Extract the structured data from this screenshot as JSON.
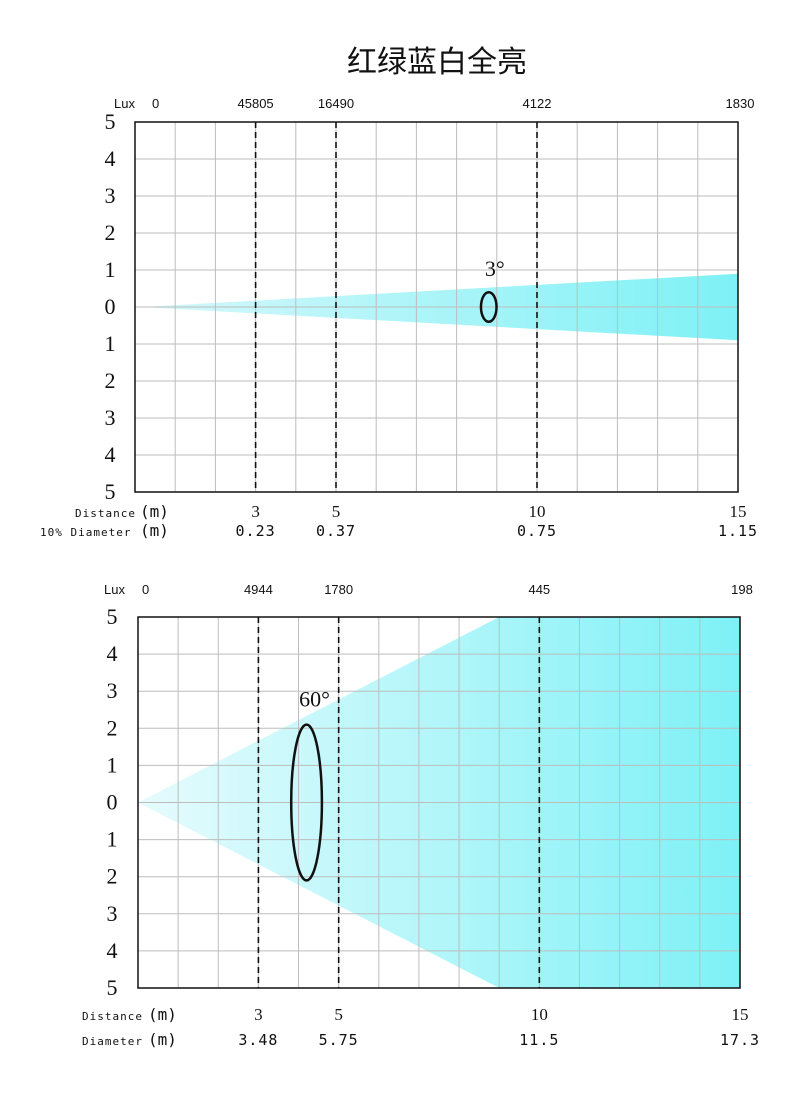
{
  "title": "红绿蓝白全亮",
  "chart_data": [
    {
      "type": "area",
      "subtitle": "beam spread diagram",
      "beam_angle_label": "3°",
      "lux_label": "Lux",
      "lux_values": [
        "0",
        "45805",
        "16490",
        "4122",
        "1830"
      ],
      "lux_positions_m": [
        0,
        3,
        5,
        10,
        15
      ],
      "x_max_m": 15,
      "y_range": [
        -5,
        5
      ],
      "y_tick_labels": [
        "5",
        "4",
        "3",
        "2",
        "1",
        "0",
        "1",
        "2",
        "3",
        "4",
        "5"
      ],
      "distance_row_label": "Distance",
      "diameter_row_label": "10% Diameter",
      "unit_label": "(m)",
      "distances_m": [
        3,
        5,
        10,
        15
      ],
      "distance_labels": [
        "3",
        "5",
        "10",
        "15"
      ],
      "diameters_m": [
        0.23,
        0.37,
        0.75,
        1.15
      ],
      "diameter_labels": [
        "0.23",
        "0.37",
        "0.75",
        "1.15"
      ],
      "dashed_lines_m": [
        3,
        5,
        10
      ],
      "beam_half_height_at_end": 0.9,
      "ellipse_at_m": 8.8,
      "ellipse_half_height": 0.4,
      "beam_color_light": "#d6f8fb",
      "beam_color_dark": "#7ef1f6"
    },
    {
      "type": "area",
      "subtitle": "beam spread diagram",
      "beam_angle_label": "60°",
      "lux_label": "Lux",
      "lux_values": [
        "0",
        "4944",
        "1780",
        "445",
        "198"
      ],
      "lux_positions_m": [
        0,
        3,
        5,
        10,
        15
      ],
      "x_max_m": 15,
      "y_range": [
        -5,
        5
      ],
      "y_tick_labels": [
        "5",
        "4",
        "3",
        "2",
        "1",
        "0",
        "1",
        "2",
        "3",
        "4",
        "5"
      ],
      "distance_row_label": "Distance",
      "diameter_row_label": "Diameter",
      "unit_label": "(m)",
      "distances_m": [
        3,
        5,
        10,
        15
      ],
      "distance_labels": [
        "3",
        "5",
        "10",
        "15"
      ],
      "diameters_m": [
        3.48,
        5.75,
        11.5,
        17.3
      ],
      "diameter_labels": [
        "3.48",
        "5.75",
        "11.5",
        "17.3"
      ],
      "dashed_lines_m": [
        3,
        5,
        10
      ],
      "beam_reaches_edge_at_m": 9,
      "ellipse_at_m": 4.2,
      "ellipse_half_height": 2.1,
      "beam_color_light": "#e6fbfd",
      "beam_color_dark": "#7ef1f6"
    }
  ]
}
